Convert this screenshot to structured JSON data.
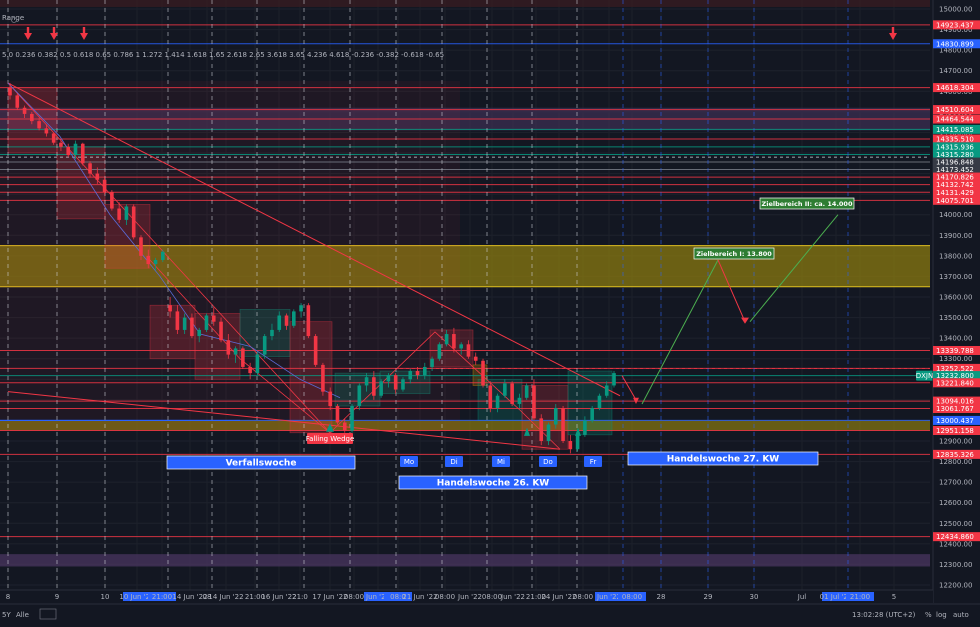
{
  "chart_data": {
    "type": "candlestick",
    "instrument_badge": "DXJN",
    "fib_strip": "5.0 0.236 0.382 0.5 0.618 0.65 0.786 1 1.272 1.414 1.618 1.65 2.618 2.65 3.618 3.65 4.236 4.618 -0.236 -0.382 -0.618 -0.65",
    "fib_strip_label": "Range",
    "y_axis": {
      "min": 12150,
      "max": 15050,
      "ticks": [
        15000,
        14900,
        14800,
        14700,
        14600,
        14500,
        14400,
        14300,
        14200,
        14100,
        14000,
        13900,
        13800,
        13700,
        13600,
        13500,
        13400,
        13300,
        13200,
        13100,
        13000,
        12900,
        12800,
        12700,
        12600,
        12500,
        12400,
        12300,
        12200
      ]
    },
    "x_axis": {
      "labels": [
        {
          "t": "8",
          "x": 8
        },
        {
          "t": "9",
          "x": 57
        },
        {
          "t": "10",
          "x": 105
        },
        {
          "t": "10 Jun '22",
          "x": 137,
          "hl": true
        },
        {
          "t": "21:00",
          "x": 162,
          "hl": true
        },
        {
          "t": "14 Jun '22",
          "x": 190
        },
        {
          "t": "08",
          "x": 207
        },
        {
          "t": "14 Jun '22",
          "x": 226
        },
        {
          "t": "21:00",
          "x": 255
        },
        {
          "t": "16 Jun '22",
          "x": 279
        },
        {
          "t": "21:0",
          "x": 300
        },
        {
          "t": "17 Jun '22",
          "x": 330
        },
        {
          "t": "08:00",
          "x": 354
        },
        {
          "t": "Jun '22",
          "x": 378,
          "hl": true
        },
        {
          "t": "08:0",
          "x": 398,
          "hl": true
        },
        {
          "t": "21 Jun '22",
          "x": 420
        },
        {
          "t": "08:00",
          "x": 445
        },
        {
          "t": "Jun '22",
          "x": 470
        },
        {
          "t": "08:00",
          "x": 492
        },
        {
          "t": "Jun '22",
          "x": 513
        },
        {
          "t": "21:00",
          "x": 536
        },
        {
          "t": "24 Jun '22",
          "x": 559
        },
        {
          "t": "08:00",
          "x": 583
        },
        {
          "t": "Jun '22",
          "x": 609,
          "hl": true
        },
        {
          "t": "08:00",
          "x": 632,
          "hl": true
        },
        {
          "t": "28",
          "x": 661
        },
        {
          "t": "29",
          "x": 708
        },
        {
          "t": "30",
          "x": 754
        },
        {
          "t": "Jul",
          "x": 802
        },
        {
          "t": "01 Jul '22",
          "x": 836,
          "hl": true
        },
        {
          "t": "21:00",
          "x": 860,
          "hl": true
        },
        {
          "t": "5",
          "x": 894
        }
      ]
    },
    "level_labels": [
      {
        "value": "14923.437",
        "price": 14923,
        "color": "#f23645"
      },
      {
        "value": "14830.899",
        "price": 14831,
        "color": "#2962ff"
      },
      {
        "value": "14618.304",
        "price": 14618,
        "color": "#f23645"
      },
      {
        "value": "14510.604",
        "price": 14511,
        "color": "#f23645"
      },
      {
        "value": "14464.544",
        "price": 14465,
        "color": "#f23645"
      },
      {
        "value": "14415.085",
        "price": 14415,
        "color": "#089981"
      },
      {
        "value": "14335.510",
        "price": 14368,
        "color": "#f23645"
      },
      {
        "value": "14315.936",
        "price": 14330,
        "color": "#089981"
      },
      {
        "value": "14315.280",
        "price": 14293,
        "color": "#089981"
      },
      {
        "value": "14196.848",
        "price": 14256,
        "color": "#363a45"
      },
      {
        "value": "14173.452",
        "price": 14220,
        "color": "#363a45"
      },
      {
        "value": "14170.826",
        "price": 14183,
        "color": "#f23645"
      },
      {
        "value": "14132.742",
        "price": 14146,
        "color": "#f23645"
      },
      {
        "value": "14131.429",
        "price": 14109,
        "color": "#f23645"
      },
      {
        "value": "14075.701",
        "price": 14070,
        "color": "#f23645"
      },
      {
        "value": "13339.788",
        "price": 13340,
        "color": "#f23645"
      },
      {
        "value": "13252.522",
        "price": 13253,
        "color": "#f23645"
      },
      {
        "value": "13232.800",
        "price": 13218,
        "color": "#089981"
      },
      {
        "value": "13221.840",
        "price": 13183,
        "color": "#f23645"
      },
      {
        "value": "13094.016",
        "price": 13094,
        "color": "#f23645"
      },
      {
        "value": "13061.767",
        "price": 13058,
        "color": "#f23645"
      },
      {
        "value": "13000.437",
        "price": 13000,
        "color": "#2962ff"
      },
      {
        "value": "12951.158",
        "price": 12951,
        "color": "#f23645"
      },
      {
        "value": "12835.326",
        "price": 12835,
        "color": "#f23645"
      },
      {
        "value": "12434.860",
        "price": 12435,
        "color": "#f23645"
      }
    ],
    "zones": [
      {
        "name": "yellow-zone",
        "from": 13650,
        "to": 13850,
        "color": "#8a7a10"
      },
      {
        "name": "purple-zone",
        "from": 14410,
        "to": 14520,
        "color": "#3b2f52"
      },
      {
        "name": "violet-band",
        "from": 12290,
        "to": 12350,
        "color": "#4a3560"
      },
      {
        "name": "top-red-band",
        "from": 15010,
        "to": 15050,
        "color": "#3a1c22"
      }
    ],
    "day_labels": [
      {
        "label": "Mo",
        "x": 409
      },
      {
        "label": "Di",
        "x": 454
      },
      {
        "label": "Mi",
        "x": 501
      },
      {
        "label": "Do",
        "x": 548
      },
      {
        "label": "Fr",
        "x": 593
      }
    ],
    "week_labels": [
      {
        "label": "Verfallswoche",
        "x1": 167,
        "x2": 355,
        "y": 462
      },
      {
        "label": "Handelswoche 26. KW",
        "x1": 399,
        "x2": 587,
        "y": 482
      },
      {
        "label": "Handelswoche 27. KW",
        "x1": 628,
        "x2": 818,
        "y": 458
      }
    ],
    "annotations": [
      {
        "text": "Zielbereich I: 13.800",
        "x": 694,
        "y": 253,
        "w": 80
      },
      {
        "text": "Zielbereich II: ca. 14.000",
        "x": 760,
        "y": 203,
        "w": 94
      }
    ],
    "pattern_label": "Falling Wedge",
    "candles": [
      [
        14618,
        14640,
        14560,
        14580
      ],
      [
        14580,
        14590,
        14510,
        14520
      ],
      [
        14520,
        14530,
        14470,
        14490
      ],
      [
        14490,
        14500,
        14440,
        14455
      ],
      [
        14455,
        14470,
        14410,
        14420
      ],
      [
        14420,
        14440,
        14380,
        14395
      ],
      [
        14395,
        14400,
        14340,
        14350
      ],
      [
        14350,
        14370,
        14310,
        14330
      ],
      [
        14330,
        14345,
        14280,
        14290
      ],
      [
        14290,
        14360,
        14270,
        14345
      ],
      [
        14345,
        14350,
        14240,
        14250
      ],
      [
        14250,
        14260,
        14180,
        14200
      ],
      [
        14200,
        14230,
        14150,
        14170
      ],
      [
        14170,
        14180,
        14100,
        14110
      ],
      [
        14110,
        14120,
        14020,
        14030
      ],
      [
        14030,
        14060,
        13960,
        13975
      ],
      [
        13975,
        14050,
        13950,
        14040
      ],
      [
        14040,
        14050,
        13880,
        13890
      ],
      [
        13890,
        13900,
        13780,
        13800
      ],
      [
        13800,
        13830,
        13740,
        13760
      ],
      [
        13760,
        13790,
        13730,
        13780
      ],
      [
        13780,
        13830,
        13770,
        13820
      ],
      [
        13560,
        13600,
        13500,
        13530
      ],
      [
        13530,
        13560,
        13420,
        13440
      ],
      [
        13440,
        13520,
        13420,
        13500
      ],
      [
        13500,
        13520,
        13400,
        13410
      ],
      [
        13410,
        13450,
        13380,
        13440
      ],
      [
        13440,
        13520,
        13430,
        13510
      ],
      [
        13510,
        13550,
        13460,
        13480
      ],
      [
        13480,
        13500,
        13380,
        13390
      ],
      [
        13390,
        13420,
        13300,
        13320
      ],
      [
        13320,
        13360,
        13280,
        13350
      ],
      [
        13350,
        13360,
        13250,
        13260
      ],
      [
        13260,
        13280,
        13200,
        13230
      ],
      [
        13230,
        13330,
        13220,
        13320
      ],
      [
        13320,
        13420,
        13300,
        13410
      ],
      [
        13410,
        13470,
        13390,
        13440
      ],
      [
        13440,
        13530,
        13430,
        13510
      ],
      [
        13510,
        13520,
        13440,
        13460
      ],
      [
        13460,
        13540,
        13450,
        13530
      ],
      [
        13530,
        13570,
        13500,
        13560
      ],
      [
        13560,
        13570,
        13400,
        13410
      ],
      [
        13410,
        13420,
        13260,
        13270
      ],
      [
        13270,
        13280,
        13120,
        13140
      ],
      [
        13140,
        13160,
        13050,
        13070
      ],
      [
        13070,
        13080,
        12980,
        12990
      ],
      [
        12990,
        13010,
        12940,
        12950
      ],
      [
        12950,
        13080,
        12940,
        13070
      ],
      [
        13070,
        13180,
        13050,
        13170
      ],
      [
        13170,
        13230,
        13140,
        13210
      ],
      [
        13210,
        13240,
        13100,
        13120
      ],
      [
        13120,
        13200,
        13110,
        13190
      ],
      [
        13190,
        13230,
        13160,
        13220
      ],
      [
        13220,
        13230,
        13130,
        13150
      ],
      [
        13150,
        13210,
        13140,
        13200
      ],
      [
        13200,
        13250,
        13180,
        13240
      ],
      [
        13240,
        13260,
        13200,
        13220
      ],
      [
        13220,
        13280,
        13200,
        13260
      ],
      [
        13260,
        13310,
        13240,
        13300
      ],
      [
        13300,
        13380,
        13290,
        13370
      ],
      [
        13370,
        13440,
        13360,
        13420
      ],
      [
        13420,
        13450,
        13330,
        13350
      ],
      [
        13350,
        13380,
        13320,
        13370
      ],
      [
        13370,
        13390,
        13300,
        13310
      ],
      [
        13310,
        13330,
        13270,
        13290
      ],
      [
        13290,
        13300,
        13160,
        13170
      ],
      [
        13170,
        13190,
        13040,
        13060
      ],
      [
        13060,
        13130,
        13040,
        13120
      ],
      [
        13120,
        13200,
        13110,
        13180
      ],
      [
        13180,
        13190,
        13070,
        13080
      ],
      [
        13080,
        13130,
        13060,
        13110
      ],
      [
        13110,
        13180,
        13100,
        13170
      ],
      [
        13170,
        13200,
        13000,
        13010
      ],
      [
        13010,
        13030,
        12880,
        12900
      ],
      [
        12900,
        12990,
        12880,
        12980
      ],
      [
        12980,
        13080,
        12960,
        13060
      ],
      [
        13060,
        13070,
        12890,
        12900
      ],
      [
        12900,
        12930,
        12840,
        12860
      ],
      [
        12860,
        12940,
        12850,
        12930
      ],
      [
        12930,
        13020,
        12920,
        13000
      ],
      [
        13000,
        13070,
        12990,
        13060
      ],
      [
        13060,
        13130,
        13050,
        13120
      ],
      [
        13120,
        13190,
        13110,
        13170
      ],
      [
        13170,
        13240,
        13160,
        13230
      ]
    ]
  }
}
